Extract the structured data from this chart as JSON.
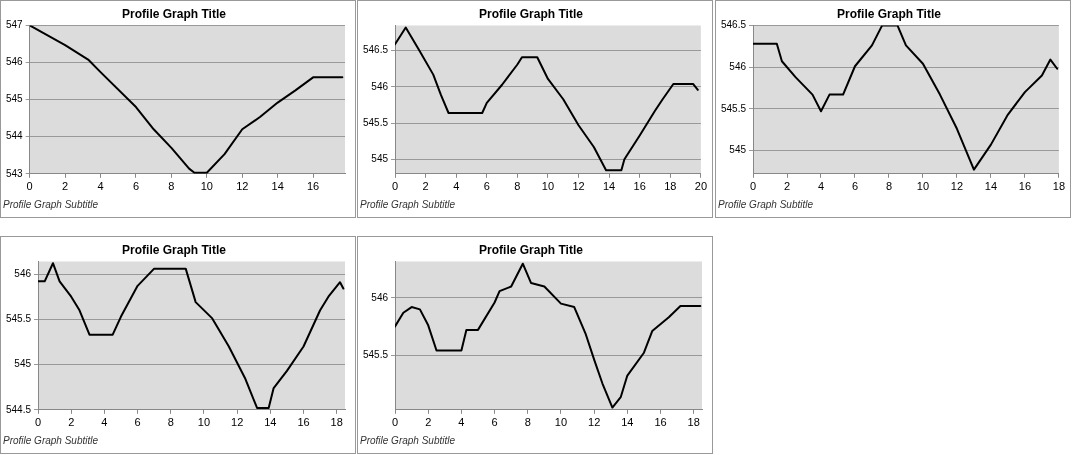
{
  "chart_data": [
    {
      "type": "line",
      "title": "Profile Graph Title",
      "subtitle": "Profile Graph Subtitle",
      "xlim": [
        0,
        17.8
      ],
      "xticks": [
        0,
        2,
        4,
        6,
        8,
        10,
        12,
        14,
        16
      ],
      "ylim": [
        543,
        547
      ],
      "yticks": [
        543,
        544,
        545,
        546,
        547
      ],
      "grid": "y",
      "marker": "none",
      "line_style": "solid",
      "legend": false,
      "series": [
        {
          "color": "#000000",
          "x": [
            0,
            2,
            3.3,
            4,
            6,
            7,
            8,
            9,
            9.3,
            10,
            11,
            12,
            13,
            14,
            15,
            16,
            16.2,
            17.65
          ],
          "values": [
            547,
            546.47,
            546.08,
            545.74,
            544.8,
            544.2,
            543.7,
            543.14,
            543.03,
            543.03,
            543.53,
            544.2,
            544.53,
            544.92,
            545.25,
            545.6,
            545.6,
            545.6
          ]
        }
      ]
    },
    {
      "type": "line",
      "title": "Profile Graph Title",
      "subtitle": "Profile Graph Subtitle",
      "xlim": [
        0,
        20
      ],
      "xticks": [
        0,
        2,
        4,
        6,
        8,
        10,
        12,
        14,
        16,
        18,
        20
      ],
      "ylim": [
        544.8,
        546.85
      ],
      "yticks": [
        545,
        545.5,
        546,
        546.5
      ],
      "grid": "y",
      "marker": "none",
      "line_style": "solid",
      "legend": false,
      "series": [
        {
          "color": "#000000",
          "x": [
            0,
            0.7,
            1.6,
            2.5,
            3,
            3.5,
            5.7,
            6,
            7,
            8,
            8.3,
            9.3,
            10,
            11,
            12,
            13,
            13.8,
            14.8,
            15,
            16,
            17,
            17.5,
            18.2,
            19.5,
            19.8
          ],
          "values": [
            546.59,
            546.82,
            546.5,
            546.17,
            545.89,
            545.64,
            545.64,
            545.78,
            546.03,
            546.31,
            546.41,
            546.41,
            546.11,
            545.83,
            545.47,
            545.17,
            544.85,
            544.85,
            545,
            545.33,
            545.67,
            545.83,
            546.04,
            546.04,
            545.96
          ]
        }
      ]
    },
    {
      "type": "line",
      "title": "Profile Graph Title",
      "subtitle": "Profile Graph Subtitle",
      "xlim": [
        0,
        18
      ],
      "xticks": [
        0,
        2,
        4,
        6,
        8,
        10,
        12,
        14,
        16,
        18
      ],
      "ylim": [
        544.72,
        546.5
      ],
      "yticks": [
        545,
        545.5,
        546,
        546.5
      ],
      "grid": "y",
      "marker": "none",
      "line_style": "solid",
      "legend": false,
      "series": [
        {
          "color": "#000000",
          "x": [
            0,
            1.4,
            1.7,
            2.5,
            3.5,
            4,
            4.5,
            5.3,
            6,
            7,
            7.6,
            8.5,
            9,
            10,
            11,
            12,
            13,
            14,
            15,
            16,
            17,
            17.5,
            17.9
          ],
          "values": [
            546.28,
            546.28,
            546.07,
            545.88,
            545.67,
            545.47,
            545.67,
            545.67,
            546.01,
            546.26,
            546.5,
            546.5,
            546.26,
            546.04,
            545.67,
            545.26,
            544.77,
            545.07,
            545.43,
            545.7,
            545.9,
            546.09,
            545.98
          ]
        }
      ]
    },
    {
      "type": "line",
      "title": "Profile Graph Title",
      "subtitle": "Profile Graph Subtitle",
      "xlim": [
        0,
        18.5
      ],
      "xticks": [
        0,
        2,
        4,
        6,
        8,
        10,
        12,
        14,
        16,
        18
      ],
      "ylim": [
        544.5,
        546.14
      ],
      "yticks": [
        544.5,
        545,
        545.5,
        546
      ],
      "grid": "y",
      "marker": "none",
      "line_style": "solid",
      "legend": false,
      "series": [
        {
          "color": "#000000",
          "x": [
            0,
            0.4,
            0.9,
            1.3,
            2,
            2.5,
            3.1,
            4.5,
            5,
            6,
            7,
            8.9,
            9.5,
            10.5,
            11.5,
            12.5,
            13.2,
            13.9,
            14.2,
            15,
            16,
            17,
            17.5,
            18.2,
            18.4
          ],
          "values": [
            545.92,
            545.92,
            546.12,
            545.92,
            545.75,
            545.6,
            545.33,
            545.33,
            545.53,
            545.87,
            546.06,
            546.06,
            545.69,
            545.51,
            545.2,
            544.84,
            544.52,
            544.52,
            544.74,
            544.93,
            545.2,
            545.6,
            545.75,
            545.91,
            545.84
          ]
        }
      ]
    },
    {
      "type": "line",
      "title": "Profile Graph Title",
      "subtitle": "Profile Graph Subtitle",
      "xlim": [
        0,
        18.5
      ],
      "xticks": [
        0,
        2,
        4,
        6,
        8,
        10,
        12,
        14,
        16,
        18
      ],
      "ylim": [
        545.02,
        546.32
      ],
      "yticks": [
        545.5,
        546
      ],
      "grid": "y",
      "marker": "none",
      "line_style": "solid",
      "legend": false,
      "series": [
        {
          "color": "#000000",
          "x": [
            0,
            0.5,
            1,
            1.5,
            2,
            2.5,
            4,
            4.3,
            5,
            6,
            6.3,
            7,
            7.7,
            8.2,
            9,
            10,
            10.8,
            11.5,
            12,
            12.5,
            13.1,
            13.6,
            14,
            15,
            15.5,
            16.5,
            17.2,
            18.4
          ],
          "values": [
            545.75,
            545.87,
            545.92,
            545.9,
            545.76,
            545.54,
            545.54,
            545.72,
            545.72,
            545.96,
            546.06,
            546.1,
            546.3,
            546.13,
            546.1,
            545.95,
            545.92,
            545.68,
            545.46,
            545.25,
            545.04,
            545.13,
            545.32,
            545.52,
            545.71,
            545.83,
            545.93,
            545.93
          ]
        }
      ]
    }
  ]
}
